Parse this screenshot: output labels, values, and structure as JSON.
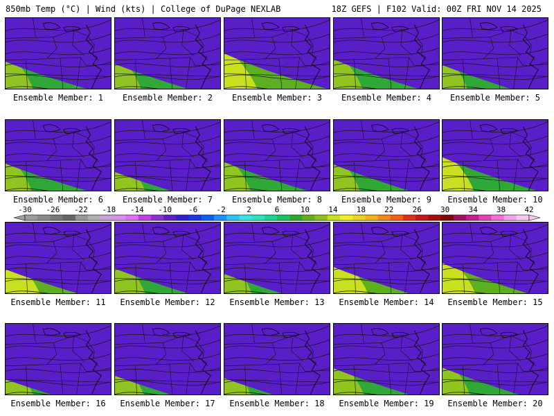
{
  "header": {
    "left": "850mb Temp (°C) | Wind (kts) | College of DuPage NEXLAB",
    "right": "18Z GEFS | F102 Valid: 00Z FRI NOV 14 2025"
  },
  "colorbar": {
    "labels": [
      "-30",
      "-26",
      "-22",
      "-18",
      "-14",
      "-10",
      "-6",
      "-2",
      "2",
      "6",
      "10",
      "14",
      "18",
      "22",
      "26",
      "30",
      "34",
      "38",
      "42"
    ],
    "colors": [
      "#9c9c9c",
      "#8a8a8a",
      "#787878",
      "#666666",
      "#999999",
      "#b0b0b0",
      "#c8a0d8",
      "#d890e8",
      "#e070f0",
      "#c040e0",
      "#9030d0",
      "#6020c0",
      "#3020c8",
      "#1838e0",
      "#1060f0",
      "#2090f8",
      "#30c0f8",
      "#40e0e8",
      "#30e0c0",
      "#20d090",
      "#20c060",
      "#30a830",
      "#60b020",
      "#90c020",
      "#c8e020",
      "#f0f020",
      "#f0d020",
      "#f0b020",
      "#f08820",
      "#f06018",
      "#e03018",
      "#c01818",
      "#a01010",
      "#800808",
      "#a01060",
      "#c02090",
      "#e040b8",
      "#f070d8",
      "#f8a0e8",
      "#f8c8f0"
    ]
  },
  "members": [
    {
      "label": "Ensemble Member: 1",
      "cold": 0.55,
      "warm": 0.25
    },
    {
      "label": "Ensemble Member: 2",
      "cold": 0.6,
      "warm": 0.2
    },
    {
      "label": "Ensemble Member: 3",
      "cold": 0.45,
      "warm": 0.45
    },
    {
      "label": "Ensemble Member: 4",
      "cold": 0.55,
      "warm": 0.3
    },
    {
      "label": "Ensemble Member: 5",
      "cold": 0.65,
      "warm": 0.15
    },
    {
      "label": "Ensemble Member: 6",
      "cold": 0.55,
      "warm": 0.2
    },
    {
      "label": "Ensemble Member: 7",
      "cold": 0.7,
      "warm": 0.35
    },
    {
      "label": "Ensemble Member: 8",
      "cold": 0.55,
      "warm": 0.2
    },
    {
      "label": "Ensemble Member: 9",
      "cold": 0.6,
      "warm": 0.2
    },
    {
      "label": "Ensemble Member: 10",
      "cold": 0.5,
      "warm": 0.4
    },
    {
      "label": "Ensemble Member: 11",
      "cold": 0.6,
      "warm": 0.5
    },
    {
      "label": "Ensemble Member: 12",
      "cold": 0.6,
      "warm": 0.35
    },
    {
      "label": "Ensemble Member: 13",
      "cold": 0.7,
      "warm": 0.25
    },
    {
      "label": "Ensemble Member: 14",
      "cold": 0.6,
      "warm": 0.5
    },
    {
      "label": "Ensemble Member: 15",
      "cold": 0.55,
      "warm": 0.45
    },
    {
      "label": "Ensemble Member: 16",
      "cold": 0.75,
      "warm": 0.25
    },
    {
      "label": "Ensemble Member: 17",
      "cold": 0.7,
      "warm": 0.3
    },
    {
      "label": "Ensemble Member: 18",
      "cold": 0.75,
      "warm": 0.2
    },
    {
      "label": "Ensemble Member: 19",
      "cold": 0.6,
      "warm": 0.35
    },
    {
      "label": "Ensemble Member: 20",
      "cold": 0.6,
      "warm": 0.25
    }
  ]
}
